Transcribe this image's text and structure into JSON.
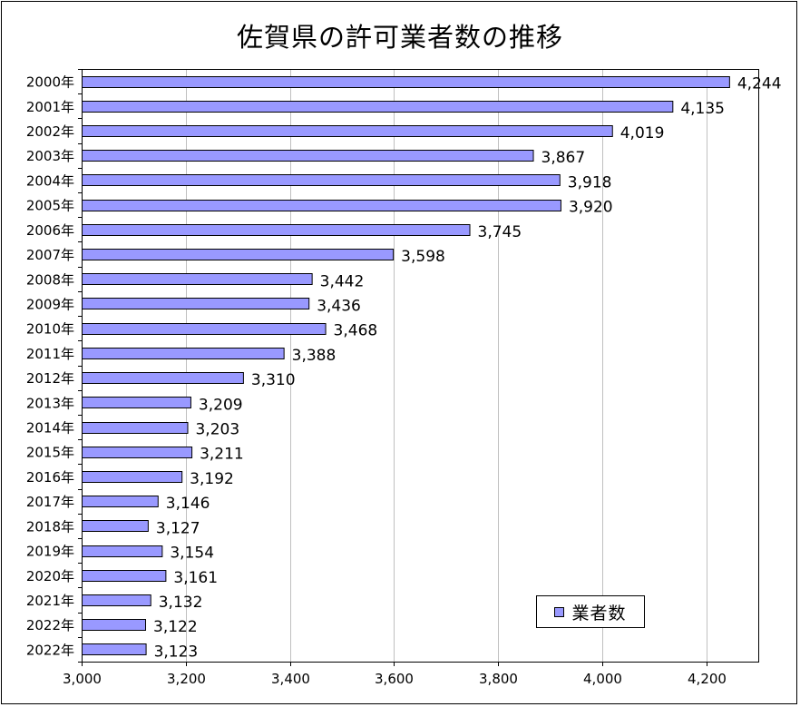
{
  "chart_data": {
    "type": "bar",
    "orientation": "horizontal",
    "title": "佐賀県の許可業者数の推移",
    "categories": [
      "2000年",
      "2001年",
      "2002年",
      "2003年",
      "2004年",
      "2005年",
      "2006年",
      "2007年",
      "2008年",
      "2009年",
      "2010年",
      "2011年",
      "2012年",
      "2013年",
      "2014年",
      "2015年",
      "2016年",
      "2017年",
      "2018年",
      "2019年",
      "2020年",
      "2021年",
      "2022年",
      "2022年"
    ],
    "series": [
      {
        "name": "業者数",
        "values": [
          4244,
          4135,
          4019,
          3867,
          3918,
          3920,
          3745,
          3598,
          3442,
          3436,
          3468,
          3388,
          3310,
          3209,
          3203,
          3211,
          3192,
          3146,
          3127,
          3154,
          3161,
          3132,
          3122,
          3123
        ],
        "value_labels": [
          "4,244",
          "4,135",
          "4,019",
          "3,867",
          "3,918",
          "3,920",
          "3,745",
          "3,598",
          "3,442",
          "3,436",
          "3,468",
          "3,388",
          "3,310",
          "3,209",
          "3,203",
          "3,211",
          "3,192",
          "3,146",
          "3,127",
          "3,154",
          "3,161",
          "3,132",
          "3,122",
          "3,123"
        ]
      }
    ],
    "value_axis": {
      "min": 3000,
      "max": 4300,
      "ticks": [
        3000,
        3200,
        3400,
        3600,
        3800,
        4000,
        4200
      ],
      "tick_labels": [
        "3,000",
        "3,200",
        "3,400",
        "3,600",
        "3,800",
        "4,000",
        "4,200"
      ]
    },
    "grid": true,
    "legend_position": "bottom-right",
    "colors": {
      "bar_fill": "#9999ff",
      "bar_stroke": "#000000",
      "grid": "#c0c0c0",
      "background": "#ffffff"
    }
  }
}
